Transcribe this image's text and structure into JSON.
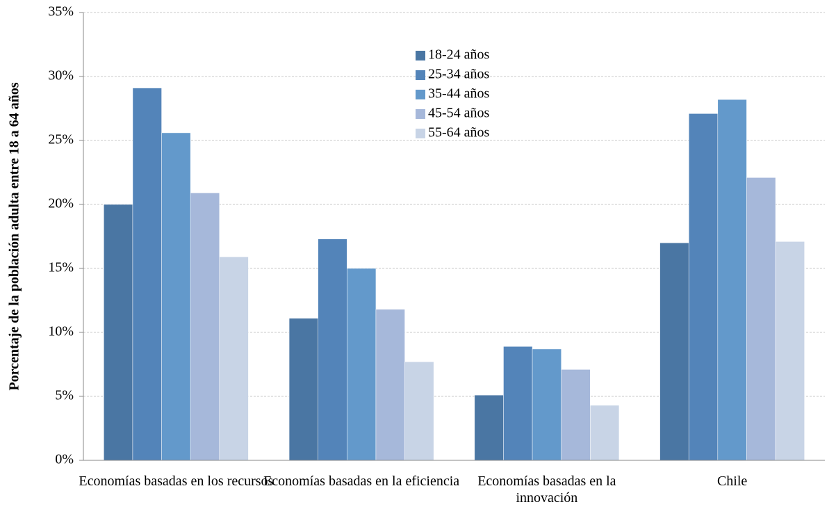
{
  "chart_data": {
    "type": "bar",
    "y_label": "Porcentaje de la población adulta entre 18 a 64 años",
    "categories": [
      "Economías basadas en los recursos",
      "Economías basadas en la eficiencia",
      "Economías basadas en la innovación",
      "Chile"
    ],
    "series": [
      {
        "name": "18-24 años",
        "color": "#4a76a3",
        "values": [
          20.0,
          11.1,
          5.1,
          17.0
        ]
      },
      {
        "name": "25-34 años",
        "color": "#5384b9",
        "values": [
          29.1,
          17.3,
          8.9,
          27.1
        ]
      },
      {
        "name": "35-44 años",
        "color": "#6399cb",
        "values": [
          25.6,
          15.0,
          8.7,
          28.2
        ]
      },
      {
        "name": "45-54 años",
        "color": "#a6b8da",
        "values": [
          20.9,
          11.8,
          7.1,
          22.1
        ]
      },
      {
        "name": "55-64 años",
        "color": "#c8d4e6",
        "values": [
          15.9,
          7.7,
          4.3,
          17.1
        ]
      }
    ],
    "ylim": [
      0,
      35
    ],
    "yticks": [
      {
        "value": 0,
        "label": "0%"
      },
      {
        "value": 5,
        "label": "5%"
      },
      {
        "value": 10,
        "label": "10%"
      },
      {
        "value": 15,
        "label": "15%"
      },
      {
        "value": 20,
        "label": "20%"
      },
      {
        "value": 25,
        "label": "25%"
      },
      {
        "value": 30,
        "label": "30%"
      },
      {
        "value": 35,
        "label": "35%"
      }
    ],
    "grid": true
  }
}
